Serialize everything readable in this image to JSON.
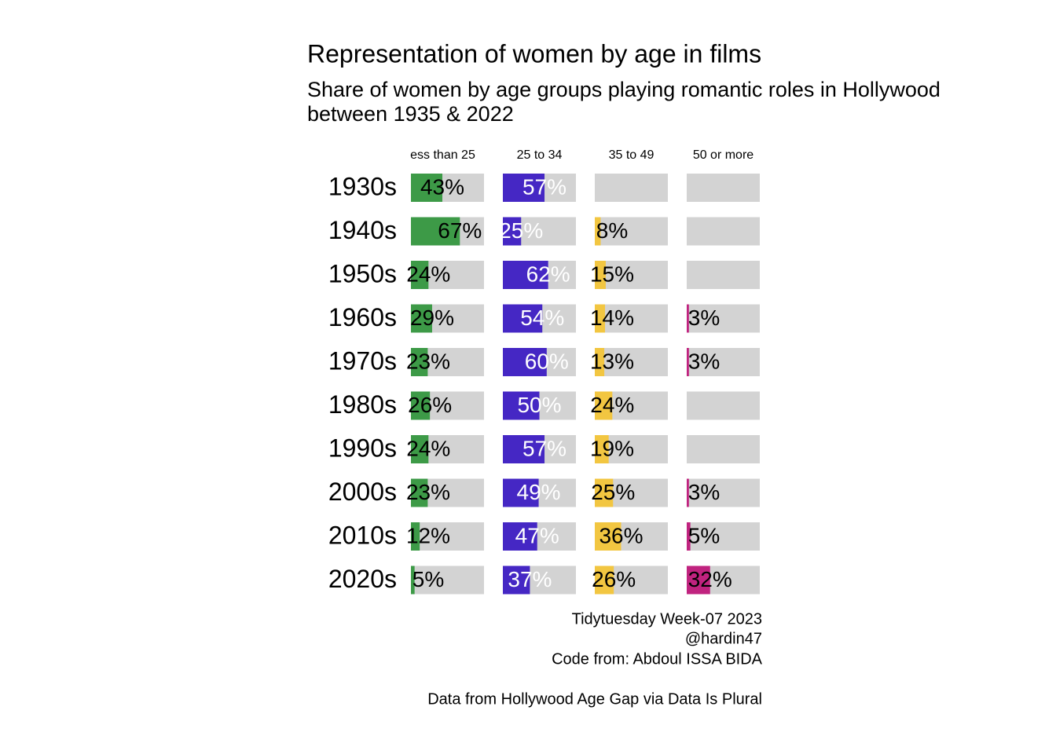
{
  "chart_data": {
    "type": "bar-grid",
    "title": "Representation of women by age in films",
    "subtitle": [
      "Share of women by age groups playing romantic roles in Hollywood",
      "between 1935 & 2022"
    ],
    "caption": [
      "Tidytuesday Week-07 2023",
      "@hardin47",
      "Code from: Abdoul ISSA BIDA",
      "Data from Hollywood Age Gap via Data Is Plural"
    ],
    "categories": [
      "1930s",
      "1940s",
      "1950s",
      "1960s",
      "1970s",
      "1980s",
      "1990s",
      "2000s",
      "2010s",
      "2020s"
    ],
    "xlim": [
      0,
      100
    ],
    "background_color": "#d3d3d3",
    "series": [
      {
        "name": "ess than 25",
        "color": "#3d9a47",
        "label_color": "#000000",
        "values": [
          43,
          67,
          24,
          29,
          23,
          26,
          24,
          23,
          12,
          5
        ],
        "value_labels": [
          "43%",
          "67%",
          "24%",
          "29%",
          "23%",
          "26%",
          "24%",
          "23%",
          "12%",
          "5%"
        ]
      },
      {
        "name": "25 to 34",
        "color": "#4527c4",
        "label_color": "#ffffff",
        "values": [
          57,
          25,
          62,
          54,
          60,
          50,
          57,
          49,
          47,
          37
        ],
        "value_labels": [
          "57%",
          "25%",
          "62%",
          "54%",
          "60%",
          "50%",
          "57%",
          "49%",
          "47%",
          "37%"
        ]
      },
      {
        "name": "35 to 49",
        "color": "#f2c641",
        "label_color": "#000000",
        "values": [
          null,
          8,
          15,
          14,
          13,
          24,
          19,
          25,
          36,
          26
        ],
        "value_labels": [
          null,
          "8%",
          "15%",
          "14%",
          "13%",
          "24%",
          "19%",
          "25%",
          "36%",
          "26%"
        ]
      },
      {
        "name": "50 or more",
        "color": "#c0237f",
        "label_color": "#000000",
        "values": [
          null,
          null,
          null,
          3,
          3,
          null,
          null,
          3,
          5,
          32
        ],
        "value_labels": [
          null,
          null,
          null,
          "3%",
          "3%",
          null,
          null,
          "3%",
          "5%",
          "32%"
        ]
      }
    ]
  }
}
